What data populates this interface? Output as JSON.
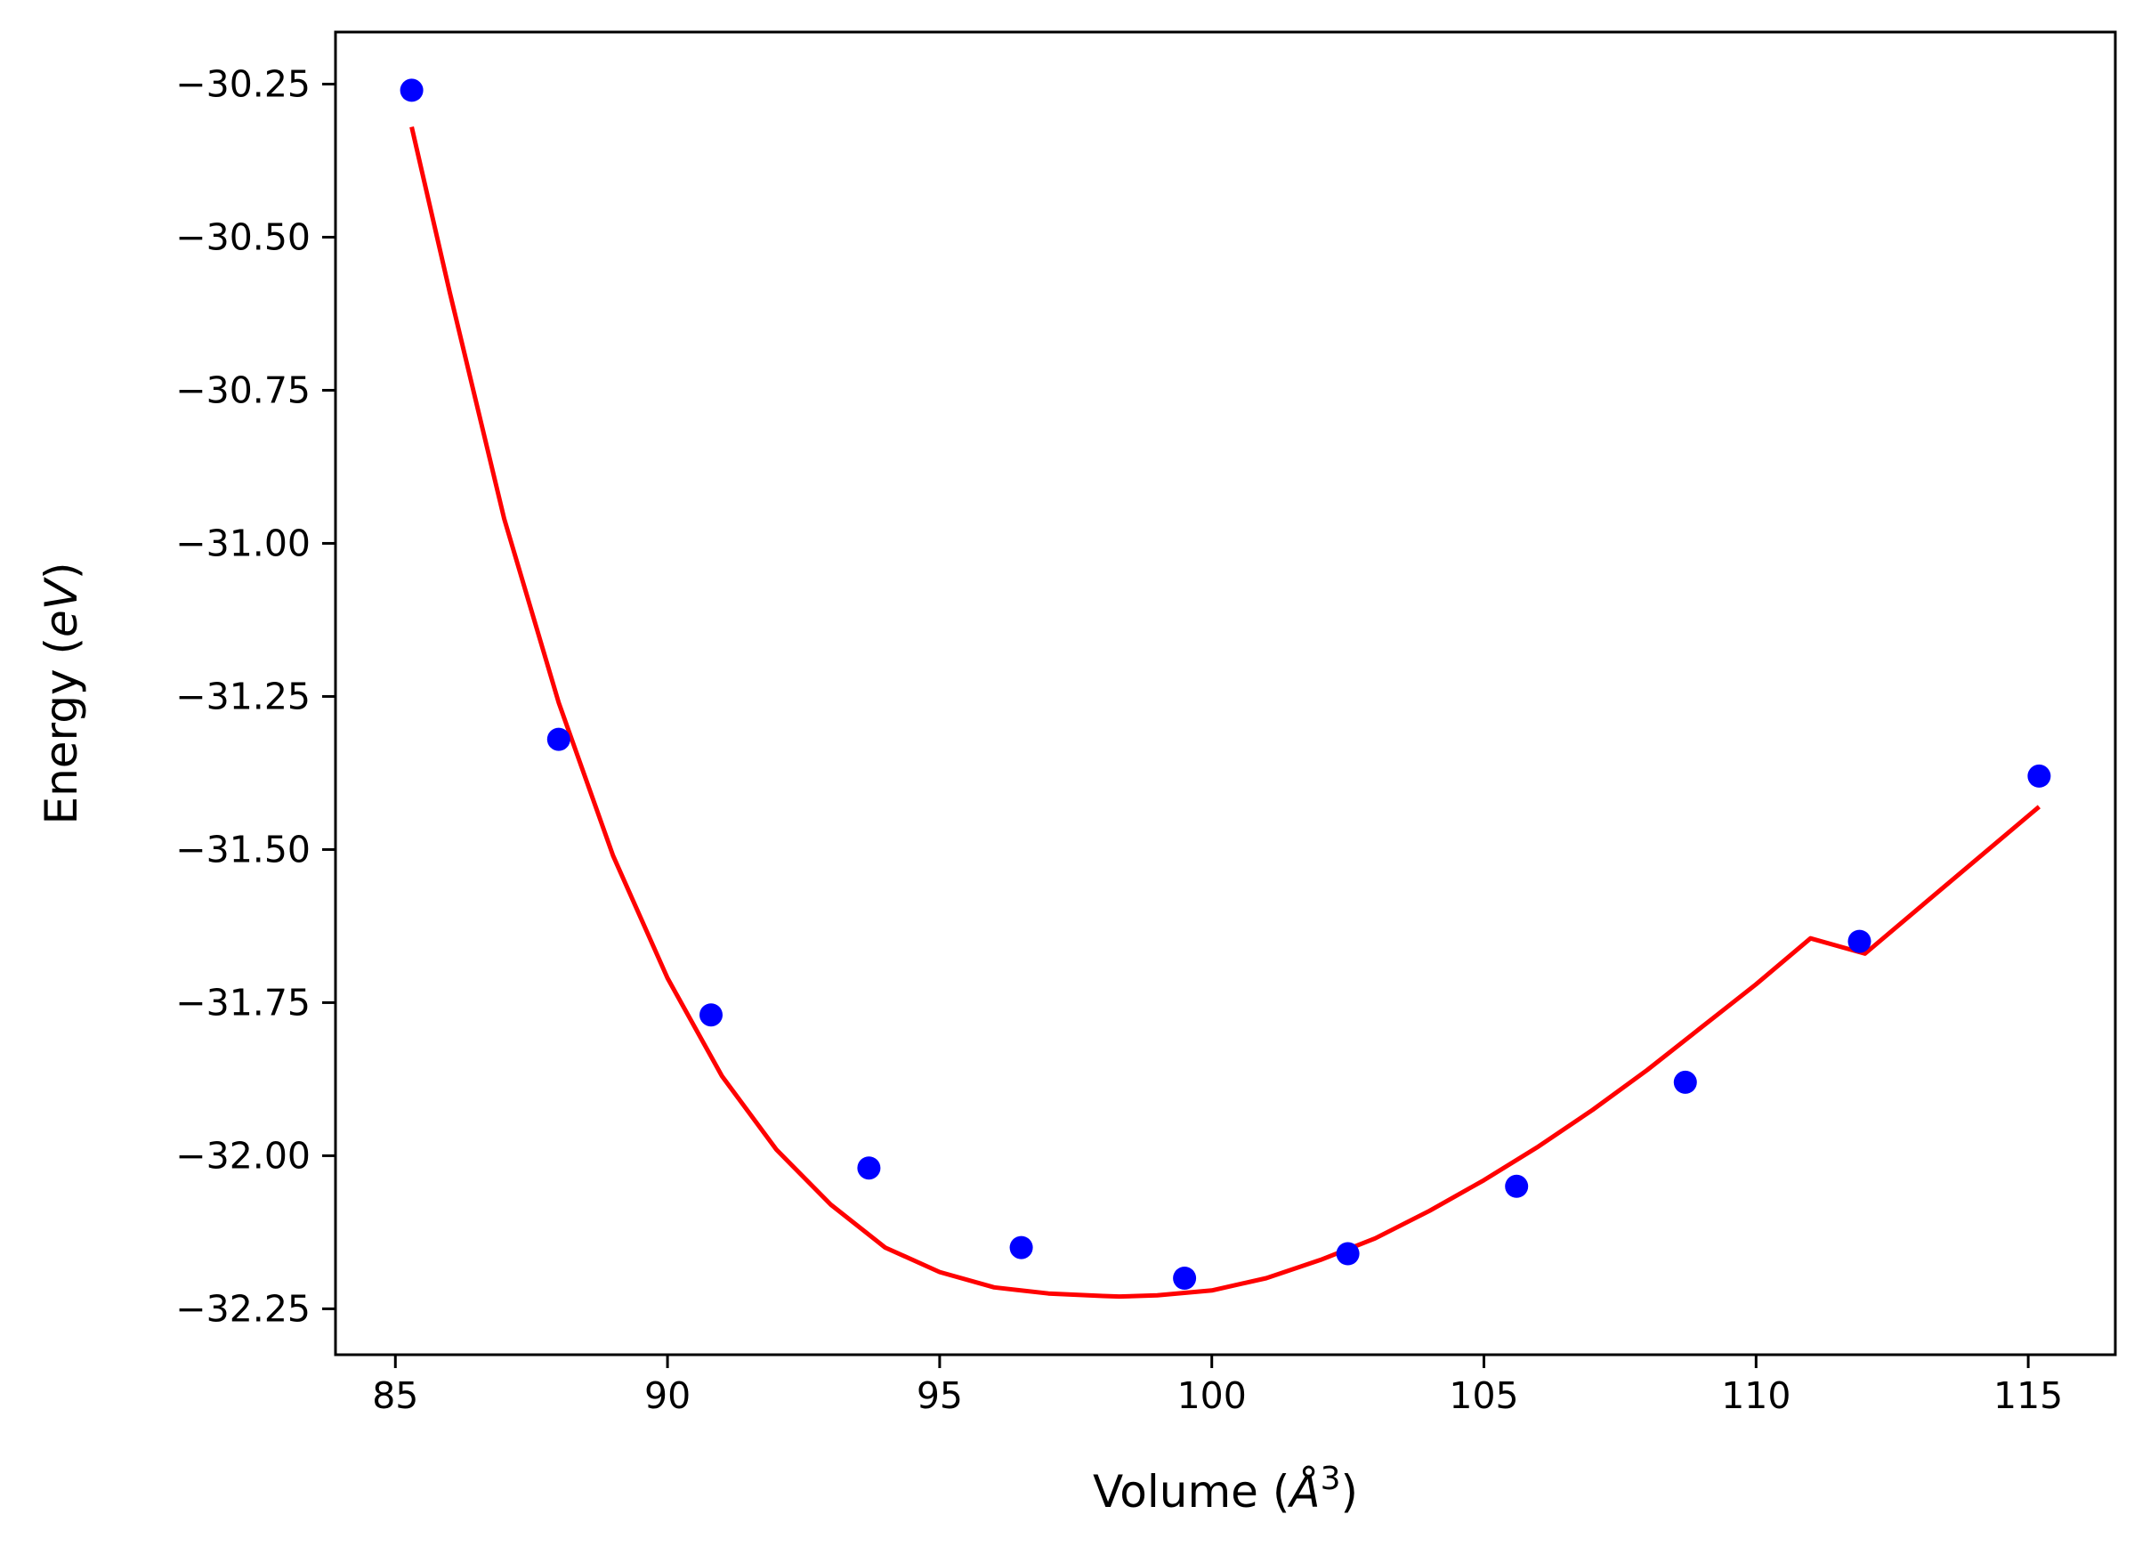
{
  "chart_data": {
    "type": "scatter",
    "xlabel": "Volume",
    "xlabel_unit": "Å",
    "xlabel_unit_sup": "3",
    "ylabel": "Energy",
    "ylabel_unit": "eV",
    "xlim": [
      83.9,
      116.6
    ],
    "ylim": [
      -32.325,
      -30.165
    ],
    "x_ticks": [
      85,
      90,
      95,
      100,
      105,
      110,
      115
    ],
    "y_ticks": [
      -30.25,
      -30.5,
      -30.75,
      -31.0,
      -31.25,
      -31.5,
      -31.75,
      -32.0,
      -32.25
    ],
    "x_tick_labels": [
      "85",
      "90",
      "95",
      "100",
      "105",
      "110",
      "115"
    ],
    "y_tick_labels": [
      "−30.25",
      "−30.50",
      "−30.75",
      "−31.00",
      "−31.25",
      "−31.50",
      "−31.75",
      "−32.00",
      "−32.25"
    ],
    "grid": false,
    "series": [
      {
        "kind": "points",
        "color": "#0000ff",
        "x": [
          85.3,
          88.0,
          90.8,
          93.7,
          96.5,
          99.5,
          102.5,
          105.6,
          108.7,
          111.9,
          115.2
        ],
        "y": [
          -30.26,
          -31.32,
          -31.77,
          -32.02,
          -32.15,
          -32.2,
          -32.16,
          -32.05,
          -31.88,
          -31.65,
          -31.38
        ]
      },
      {
        "kind": "line",
        "color": "#ff0000",
        "x": [
          85.3,
          86.0,
          87.0,
          88.0,
          89.0,
          90.0,
          91.0,
          92.0,
          93.0,
          94.0,
          95.0,
          96.0,
          97.0,
          98.0,
          98.3,
          99.0,
          100.0,
          101.0,
          102.0,
          103.0,
          104.0,
          105.0,
          106.0,
          107.0,
          108.0,
          109.0,
          110.0,
          111.0,
          112.0,
          113.0,
          114.0,
          115.2
        ],
        "y": [
          -30.32,
          -30.59,
          -30.96,
          -31.26,
          -31.51,
          -31.71,
          -31.87,
          -31.99,
          -32.08,
          -32.15,
          -32.19,
          -32.215,
          -32.225,
          -32.229,
          -32.23,
          -32.228,
          -32.22,
          -32.2,
          -32.17,
          -32.135,
          -32.09,
          -32.04,
          -31.985,
          -31.925,
          -31.86,
          -31.79,
          -31.72,
          -31.645,
          -31.67,
          -31.595,
          -31.52,
          -31.43
        ]
      }
    ]
  }
}
